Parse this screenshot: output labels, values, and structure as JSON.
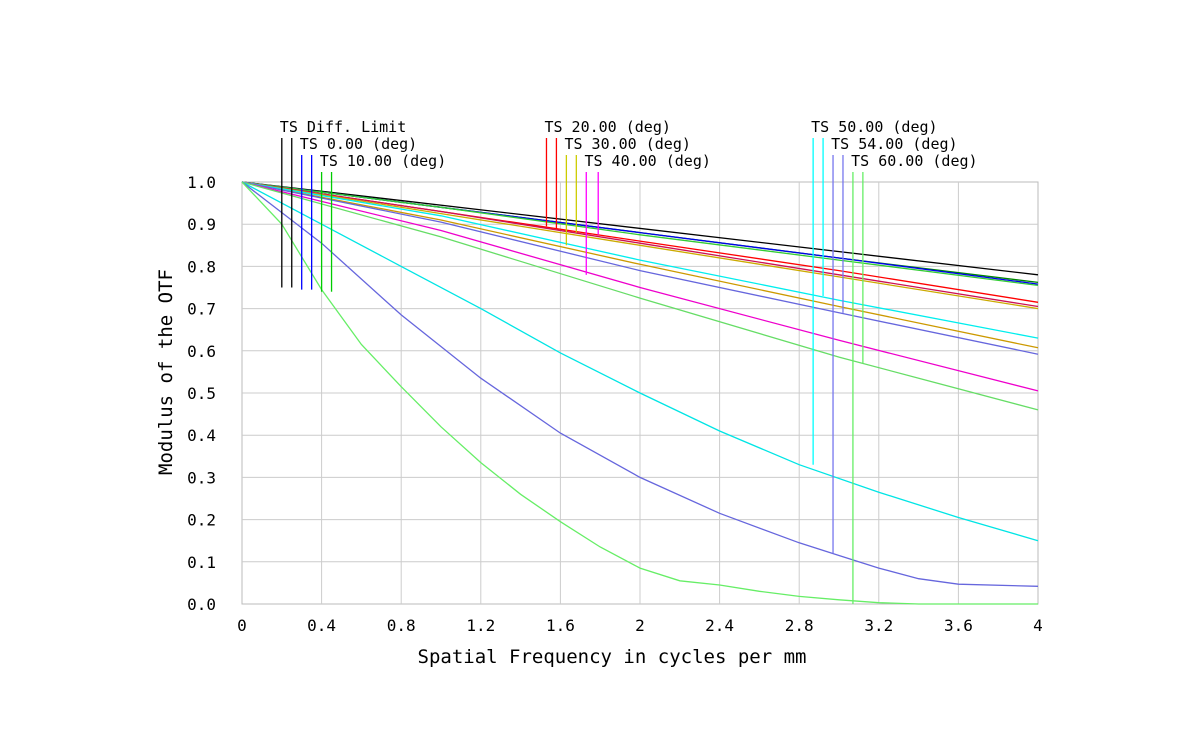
{
  "chart_data": {
    "type": "line",
    "xlabel": "Spatial Frequency in cycles per mm",
    "ylabel": "Modulus of the OTF",
    "xlim": [
      0,
      4
    ],
    "ylim": [
      0,
      1
    ],
    "grid": true,
    "x_ticks": [
      0,
      0.4,
      0.8,
      1.2,
      1.6,
      2,
      2.4,
      2.8,
      3.2,
      3.6,
      4
    ],
    "x_tick_labels": [
      "0",
      "0.4",
      "0.8",
      "1.2",
      "1.6",
      "2",
      "2.4",
      "2.8",
      "3.2",
      "3.6",
      "4"
    ],
    "y_ticks": [
      0,
      0.1,
      0.2,
      0.3,
      0.4,
      0.5,
      0.6,
      0.7,
      0.8,
      0.9,
      1.0
    ],
    "y_tick_labels": [
      "0.0",
      "0.1",
      "0.2",
      "0.3",
      "0.4",
      "0.5",
      "0.6",
      "0.7",
      "0.8",
      "0.9",
      "1.0"
    ],
    "legend_entries": [
      {
        "label": "TS Diff. Limit",
        "colors": [
          "#000000",
          "#000000"
        ],
        "marker_x": [
          0.2,
          0.25
        ],
        "marker_y": [
          0.75,
          0.75
        ]
      },
      {
        "label": "TS 0.00 (deg)",
        "colors": [
          "#0000ff",
          "#0000ff"
        ],
        "marker_x": [
          0.3,
          0.35
        ],
        "marker_y": [
          0.745,
          0.745
        ]
      },
      {
        "label": "TS 10.00 (deg)",
        "colors": [
          "#00cc00",
          "#00cc00"
        ],
        "marker_x": [
          0.4,
          0.45
        ],
        "marker_y": [
          0.74,
          0.74
        ]
      },
      {
        "label": "TS 20.00 (deg)",
        "colors": [
          "#ff0000",
          "#ff0000"
        ],
        "marker_x": [
          1.53,
          1.58
        ],
        "marker_y": [
          0.895,
          0.89
        ]
      },
      {
        "label": "TS 30.00 (deg)",
        "colors": [
          "#cccc00",
          "#cccc00"
        ],
        "marker_x": [
          1.63,
          1.68
        ],
        "marker_y": [
          0.85,
          0.88
        ]
      },
      {
        "label": "TS 40.00 (deg)",
        "colors": [
          "#ff00ff",
          "#ff00ff"
        ],
        "marker_x": [
          1.73,
          1.79
        ],
        "marker_y": [
          0.78,
          0.875
        ]
      },
      {
        "label": "TS 50.00 (deg)",
        "colors": [
          "#00ffff",
          "#00ffff"
        ],
        "marker_x": [
          2.87,
          2.92
        ],
        "marker_y": [
          0.33,
          0.73
        ]
      },
      {
        "label": "TS 54.00 (deg)",
        "colors": [
          "#7777ee",
          "#7777ee"
        ],
        "marker_x": [
          2.97,
          3.02
        ],
        "marker_y": [
          0.12,
          0.69
        ]
      },
      {
        "label": "TS 60.00 (deg)",
        "colors": [
          "#66ee66",
          "#66ee66"
        ],
        "marker_x": [
          3.07,
          3.12
        ],
        "marker_y": [
          0.0,
          0.57
        ]
      }
    ],
    "series": [
      {
        "color": "#000000",
        "x": [
          0,
          4
        ],
        "y": [
          1.0,
          0.78
        ]
      },
      {
        "color": "#008800",
        "x": [
          0,
          1,
          2,
          3,
          4
        ],
        "y": [
          1.0,
          0.94,
          0.88,
          0.82,
          0.762
        ]
      },
      {
        "color": "#0000ee",
        "x": [
          0,
          1,
          2,
          3,
          4
        ],
        "y": [
          1.0,
          0.94,
          0.88,
          0.82,
          0.758
        ]
      },
      {
        "color": "#33cc33",
        "x": [
          0,
          1,
          2,
          3,
          4
        ],
        "y": [
          1.0,
          0.94,
          0.875,
          0.815,
          0.755
        ]
      },
      {
        "color": "#ff0000",
        "x": [
          0,
          1,
          2,
          3,
          4
        ],
        "y": [
          1.0,
          0.93,
          0.86,
          0.79,
          0.715
        ]
      },
      {
        "color": "#cc1155",
        "x": [
          0,
          1,
          2,
          3,
          4
        ],
        "y": [
          1.0,
          0.93,
          0.855,
          0.78,
          0.705
        ]
      },
      {
        "color": "#ccaa00",
        "x": [
          0,
          1,
          2,
          3,
          4
        ],
        "y": [
          1.0,
          0.925,
          0.85,
          0.775,
          0.7
        ]
      },
      {
        "color": "#cc9900",
        "x": [
          0,
          1,
          2,
          3,
          4
        ],
        "y": [
          1.0,
          0.91,
          0.805,
          0.705,
          0.607
        ]
      },
      {
        "color": "#00eeee",
        "x": [
          0,
          1,
          2,
          3,
          4
        ],
        "y": [
          1.0,
          0.92,
          0.815,
          0.72,
          0.63
        ]
      },
      {
        "color": "#6666dd",
        "x": [
          0,
          1,
          2,
          3,
          4
        ],
        "y": [
          1.0,
          0.905,
          0.79,
          0.69,
          0.592
        ]
      },
      {
        "color": "#ee00cc",
        "x": [
          0,
          1,
          2,
          3,
          4
        ],
        "y": [
          1.0,
          0.885,
          0.75,
          0.625,
          0.505
        ]
      },
      {
        "color": "#66dd66",
        "x": [
          0,
          1,
          2,
          3,
          4
        ],
        "y": [
          1.0,
          0.87,
          0.725,
          0.585,
          0.46
        ]
      },
      {
        "color": "#00e5e5",
        "x": [
          0,
          0.4,
          0.8,
          1.2,
          1.6,
          2.0,
          2.4,
          2.8,
          3.2,
          3.6,
          4.0
        ],
        "y": [
          1.0,
          0.9,
          0.8,
          0.7,
          0.595,
          0.5,
          0.41,
          0.33,
          0.265,
          0.205,
          0.15
        ]
      },
      {
        "color": "#6666dd",
        "x": [
          0,
          0.4,
          0.8,
          1.2,
          1.6,
          2.0,
          2.4,
          2.8,
          3.0,
          3.2,
          3.4,
          3.6,
          4.0
        ],
        "y": [
          1.0,
          0.855,
          0.685,
          0.535,
          0.405,
          0.3,
          0.215,
          0.145,
          0.115,
          0.085,
          0.06,
          0.047,
          0.042
        ]
      },
      {
        "color": "#66ee66",
        "x": [
          0,
          0.2,
          0.4,
          0.6,
          0.8,
          1.0,
          1.2,
          1.4,
          1.6,
          1.8,
          2.0,
          2.2,
          2.4,
          2.6,
          2.8,
          3.0,
          3.2,
          3.4,
          4.0
        ],
        "y": [
          1.0,
          0.9,
          0.745,
          0.615,
          0.515,
          0.42,
          0.335,
          0.26,
          0.195,
          0.135,
          0.085,
          0.055,
          0.045,
          0.03,
          0.018,
          0.01,
          0.003,
          0.0,
          0.0
        ]
      }
    ]
  }
}
